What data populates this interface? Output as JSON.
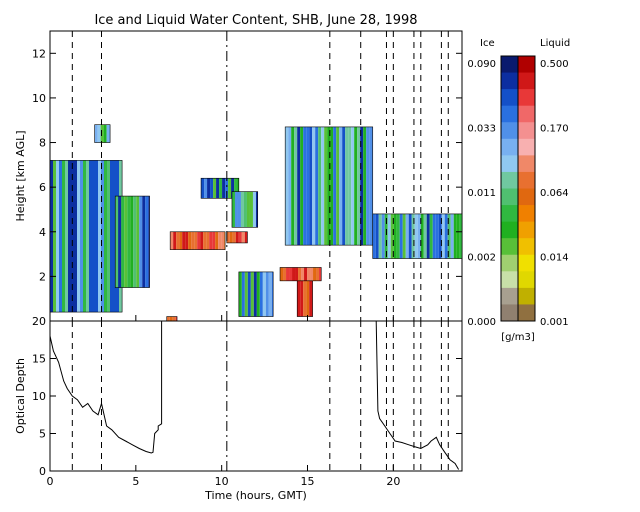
{
  "chart_data": [
    {
      "type": "heatmap",
      "title": "Ice and Liquid Water Content, SHB, June 28, 1998",
      "ylabel": "Height [km AGL]",
      "xlim": [
        0,
        24
      ],
      "ylim": [
        0,
        13
      ],
      "xticks": [
        0,
        5,
        10,
        15,
        20
      ],
      "yticks": [
        2,
        4,
        6,
        8,
        10,
        12
      ],
      "dashed_times": [
        1.3,
        3.0,
        16.3,
        18.1,
        19.6,
        20.0,
        21.2,
        21.6,
        22.8,
        23.2
      ],
      "dashdot_times": [
        10.3
      ],
      "cloud_regions": [
        {
          "phase": "ice",
          "t0": 0.0,
          "t1": 4.2,
          "z0": 0.4,
          "z1": 7.2
        },
        {
          "phase": "ice",
          "t0": 3.8,
          "t1": 5.8,
          "z0": 1.5,
          "z1": 5.6
        },
        {
          "phase": "ice",
          "t0": 2.6,
          "t1": 3.5,
          "z0": 8.0,
          "z1": 8.8
        },
        {
          "phase": "ice",
          "t0": 8.8,
          "t1": 11.0,
          "z0": 5.5,
          "z1": 6.4
        },
        {
          "phase": "ice",
          "t0": 10.6,
          "t1": 12.1,
          "z0": 4.2,
          "z1": 5.8
        },
        {
          "phase": "ice",
          "t0": 13.7,
          "t1": 18.8,
          "z0": 3.4,
          "z1": 8.7
        },
        {
          "phase": "ice",
          "t0": 18.8,
          "t1": 24.0,
          "z0": 2.8,
          "z1": 4.8
        },
        {
          "phase": "ice",
          "t0": 11.0,
          "t1": 13.0,
          "z0": 0.2,
          "z1": 2.2
        },
        {
          "phase": "liquid",
          "t0": 7.0,
          "t1": 10.2,
          "z0": 3.2,
          "z1": 4.0
        },
        {
          "phase": "liquid",
          "t0": 10.3,
          "t1": 11.5,
          "z0": 3.5,
          "z1": 4.0
        },
        {
          "phase": "liquid",
          "t0": 13.4,
          "t1": 15.8,
          "z0": 1.8,
          "z1": 2.4
        },
        {
          "phase": "liquid",
          "t0": 14.4,
          "t1": 15.3,
          "z0": 0.2,
          "z1": 1.8
        },
        {
          "phase": "liquid",
          "t0": 6.8,
          "t1": 7.4,
          "z0": 0.0,
          "z1": 0.2
        }
      ]
    },
    {
      "type": "line",
      "xlabel": "Time (hours, GMT)",
      "ylabel": "Optical Depth",
      "xlim": [
        0,
        24
      ],
      "ylim": [
        0,
        20
      ],
      "xticks": [
        0,
        5,
        10,
        15,
        20
      ],
      "yticks": [
        0,
        5,
        10,
        15,
        20
      ],
      "dashed_times": [
        1.3,
        3.0,
        16.3,
        18.1,
        19.6,
        20.0,
        21.2,
        21.6,
        22.8,
        23.2
      ],
      "dashdot_times": [
        10.3
      ],
      "series": [
        {
          "x": [
            0.0,
            0.2,
            0.5,
            0.8,
            1.0,
            1.3,
            1.6,
            1.9,
            2.2,
            2.5,
            2.8,
            3.0,
            3.3,
            3.6,
            4.0,
            4.4,
            4.8,
            5.2,
            5.6,
            5.9,
            6.0,
            6.1,
            6.3,
            6.3,
            6.5,
            6.5
          ],
          "y": [
            18.0,
            16.0,
            14.5,
            12.0,
            11.0,
            10.0,
            9.5,
            8.5,
            9.0,
            8.0,
            7.5,
            9.0,
            6.0,
            5.5,
            4.5,
            4.0,
            3.5,
            3.0,
            2.6,
            2.4,
            2.5,
            5.0,
            5.5,
            6.0,
            6.3,
            20.0
          ]
        },
        {
          "x": [
            19.0,
            19.1,
            19.2,
            19.5,
            19.8,
            20.1,
            20.5,
            20.9,
            21.3,
            21.6,
            22.0,
            22.2,
            22.5,
            22.7,
            23.0,
            23.3,
            23.6,
            23.8
          ],
          "y": [
            20.0,
            8.0,
            7.0,
            6.0,
            5.0,
            4.0,
            3.8,
            3.5,
            3.2,
            3.0,
            3.5,
            4.0,
            4.5,
            3.5,
            2.5,
            1.5,
            1.0,
            0.2
          ]
        }
      ]
    },
    {
      "type": "legend_colorbar",
      "ice_label": "Ice",
      "liquid_label": "Liquid",
      "ice_ticks": [
        "0.090",
        "0.033",
        "0.011",
        "0.002",
        "0.000"
      ],
      "liquid_ticks": [
        "0.500",
        "0.170",
        "0.064",
        "0.014",
        "0.001"
      ],
      "units": "[g/m3]",
      "ice_colors": [
        "#0a1a6e",
        "#0c2ea0",
        "#1450c8",
        "#2a70e0",
        "#5090e8",
        "#78b0f0",
        "#90c8f0",
        "#70c8a0",
        "#50c070",
        "#30b840",
        "#20b020",
        "#58c038",
        "#a0d070",
        "#c8e0a8",
        "#a8a090",
        "#908070"
      ],
      "liquid_colors": [
        "#b00000",
        "#d01818",
        "#e83838",
        "#f06868",
        "#f49090",
        "#f8b0b0",
        "#f08868",
        "#e87030",
        "#e06810",
        "#f08000",
        "#f0a000",
        "#f0c000",
        "#f0e000",
        "#e0d800",
        "#c0b000",
        "#907040"
      ]
    }
  ]
}
